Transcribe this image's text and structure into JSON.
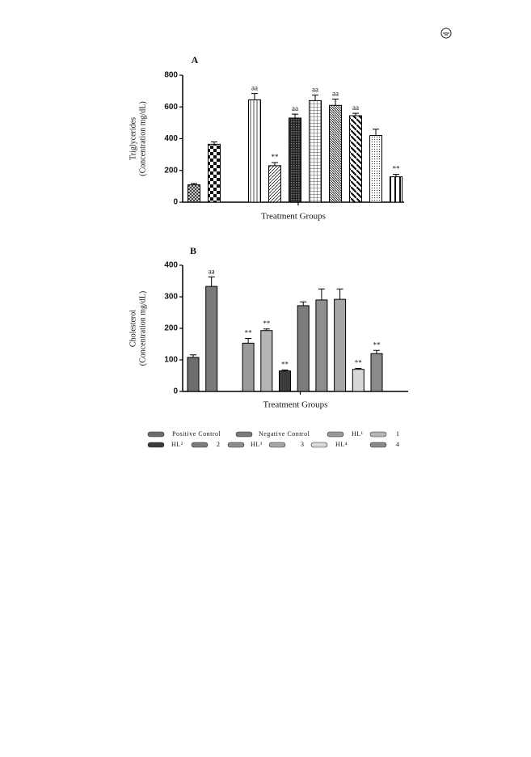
{
  "chart_data": [
    {
      "type": "bar",
      "title": "A",
      "ylabel": [
        "Triglycerides",
        "(Concentration mg/dL)"
      ],
      "xlabel": "Treatment Groups",
      "categories": [
        null,
        null,
        null,
        null,
        null,
        null,
        null,
        null,
        null,
        null
      ],
      "values": [
        110,
        365,
        645,
        230,
        530,
        640,
        610,
        545,
        420,
        160
      ],
      "errors": [
        8,
        15,
        40,
        20,
        25,
        35,
        40,
        15,
        40,
        15
      ],
      "annotations": [
        null,
        null,
        "aa",
        "**",
        "aa",
        "aa",
        "aa",
        "aa",
        null,
        "**"
      ],
      "fills": [
        "crosshatch",
        "checker",
        "vlines",
        "diag",
        "dense-grid",
        "grid",
        "diag-dense",
        "diag-wide",
        "dots",
        "vlines-wide"
      ],
      "ylim": [
        0,
        800
      ],
      "yticks": [
        0,
        200,
        400,
        600,
        800
      ]
    },
    {
      "type": "bar",
      "title": "B",
      "ylabel": [
        "Cholesterol",
        "(Concentration mg/dL)"
      ],
      "xlabel": "Treatment Groups",
      "categories": [
        null,
        null,
        null,
        null,
        null,
        null,
        null,
        null,
        null,
        null
      ],
      "values": [
        108,
        333,
        153,
        193,
        65,
        272,
        290,
        292,
        70,
        120
      ],
      "errors": [
        8,
        30,
        15,
        5,
        3,
        12,
        35,
        33,
        3,
        10
      ],
      "annotations": [
        null,
        "aa",
        "**",
        "**",
        "**",
        null,
        null,
        null,
        "**",
        "**"
      ],
      "colors": [
        "#6d6d6d",
        "#7a7a7a",
        "#9a9a9a",
        "#b5b5b5",
        "#3c3c3c",
        "#7c7c7c",
        "#8e8e8e",
        "#a6a6a6",
        "#d8d8d8",
        "#8a8a8a"
      ],
      "ylim": [
        0,
        400
      ],
      "yticks": [
        0,
        100,
        200,
        300,
        400
      ]
    }
  ],
  "legend": {
    "entries": [
      {
        "name": "Positive Control",
        "color": "#6d6d6d"
      },
      {
        "name": "Negative Control",
        "color": "#7a7a7a"
      },
      {
        "name": "HL¹",
        "color": "#9a9a9a"
      },
      {
        "name": "1",
        "color": "#b5b5b5"
      },
      {
        "name": "HL²",
        "color": "#3c3c3c"
      },
      {
        "name": "2",
        "color": "#7c7c7c"
      },
      {
        "name": "HL³",
        "color": "#8e8e8e"
      },
      {
        "name": "3",
        "color": "#a6a6a6"
      },
      {
        "name": "HL⁴",
        "color": "#d8d8d8"
      },
      {
        "name": "4",
        "color": "#8a8a8a"
      }
    ]
  }
}
